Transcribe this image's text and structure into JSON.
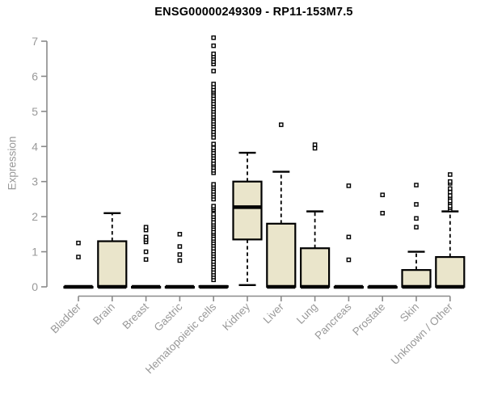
{
  "chart_data": {
    "type": "boxplot",
    "title": "ENSG00000249309 - RP11-153M7.5",
    "ylabel": "Expression",
    "ylim": [
      0,
      7
    ],
    "yticks": [
      0,
      1,
      2,
      3,
      4,
      5,
      6,
      7
    ],
    "grid": false,
    "legend": null,
    "colors": {
      "box_fill": "#EAE5CB",
      "box_stroke": "#000000",
      "axis": "#8A8A8A",
      "tick_label": "#999999",
      "title": "#000000"
    },
    "categories": [
      "Bladder",
      "Brain",
      "Breast",
      "Gastric",
      "Hematopoietic cells",
      "Kidney",
      "Liver",
      "Lung",
      "Pancreas",
      "Prostate",
      "Skin",
      "Unknown / Other"
    ],
    "boxes": [
      {
        "category": "Bladder",
        "low": 0,
        "q1": 0,
        "median": 0,
        "q3": 0,
        "high": 0,
        "outliers": [
          0.85,
          1.25
        ]
      },
      {
        "category": "Brain",
        "low": 0,
        "q1": 0,
        "median": 0,
        "q3": 1.3,
        "high": 2.1,
        "outliers": []
      },
      {
        "category": "Breast",
        "low": 0,
        "q1": 0,
        "median": 0,
        "q3": 0,
        "high": 0,
        "outliers": [
          0.78,
          1.0,
          1.28,
          1.35,
          1.42,
          1.62,
          1.7
        ]
      },
      {
        "category": "Gastric",
        "low": 0,
        "q1": 0,
        "median": 0,
        "q3": 0,
        "high": 0,
        "outliers": [
          0.75,
          0.92,
          1.15,
          1.5
        ]
      },
      {
        "category": "Hematopoietic cells",
        "low": 0,
        "q1": 0,
        "median": 0,
        "q3": 0.02,
        "high": 0.02,
        "outliers": [
          0.2,
          0.28,
          0.35,
          0.42,
          0.5,
          0.57,
          0.65,
          0.72,
          0.8,
          0.88,
          0.95,
          1.02,
          1.1,
          1.18,
          1.25,
          1.32,
          1.38,
          1.46,
          1.52,
          1.57,
          1.65,
          1.72,
          1.78,
          1.84,
          1.93,
          2.0,
          2.07,
          2.2,
          2.25,
          2.3,
          2.5,
          2.58,
          2.65,
          2.72,
          2.8,
          2.86,
          2.92,
          3.25,
          3.32,
          3.4,
          3.47,
          3.52,
          3.6,
          3.68,
          3.75,
          3.82,
          3.9,
          3.96,
          4.07,
          4.26,
          4.35,
          4.42,
          4.5,
          4.58,
          4.65,
          4.72,
          4.8,
          4.85,
          4.92,
          5.0,
          5.07,
          5.15,
          5.22,
          5.3,
          5.37,
          5.45,
          5.52,
          5.57,
          5.62,
          5.7,
          5.78,
          6.15,
          6.35,
          6.42,
          6.5,
          6.57,
          6.64,
          6.87,
          7.1
        ]
      },
      {
        "category": "Kidney",
        "low": 0.05,
        "q1": 1.35,
        "median": 2.27,
        "q3": 3.0,
        "high": 3.82,
        "outliers": []
      },
      {
        "category": "Liver",
        "low": 0,
        "q1": 0,
        "median": 0,
        "q3": 1.8,
        "high": 3.28,
        "outliers": [
          4.62
        ]
      },
      {
        "category": "Lung",
        "low": 0,
        "q1": 0,
        "median": 0,
        "q3": 1.1,
        "high": 2.15,
        "outliers": [
          3.95,
          4.05
        ]
      },
      {
        "category": "Pancreas",
        "low": 0,
        "q1": 0,
        "median": 0,
        "q3": 0,
        "high": 0,
        "outliers": [
          0.77,
          1.42,
          2.88
        ]
      },
      {
        "category": "Prostate",
        "low": 0,
        "q1": 0,
        "median": 0,
        "q3": 0,
        "high": 0,
        "outliers": [
          2.1,
          2.62
        ]
      },
      {
        "category": "Skin",
        "low": 0,
        "q1": 0,
        "median": 0,
        "q3": 0.48,
        "high": 1.0,
        "outliers": [
          1.7,
          1.95,
          2.35,
          2.9
        ]
      },
      {
        "category": "Unknown / Other",
        "low": 0,
        "q1": 0,
        "median": 0,
        "q3": 0.85,
        "high": 2.15,
        "outliers": [
          2.2,
          2.25,
          2.3,
          2.4,
          2.45,
          2.55,
          2.6,
          2.7,
          2.8,
          2.95,
          3.0,
          3.2
        ]
      }
    ]
  }
}
